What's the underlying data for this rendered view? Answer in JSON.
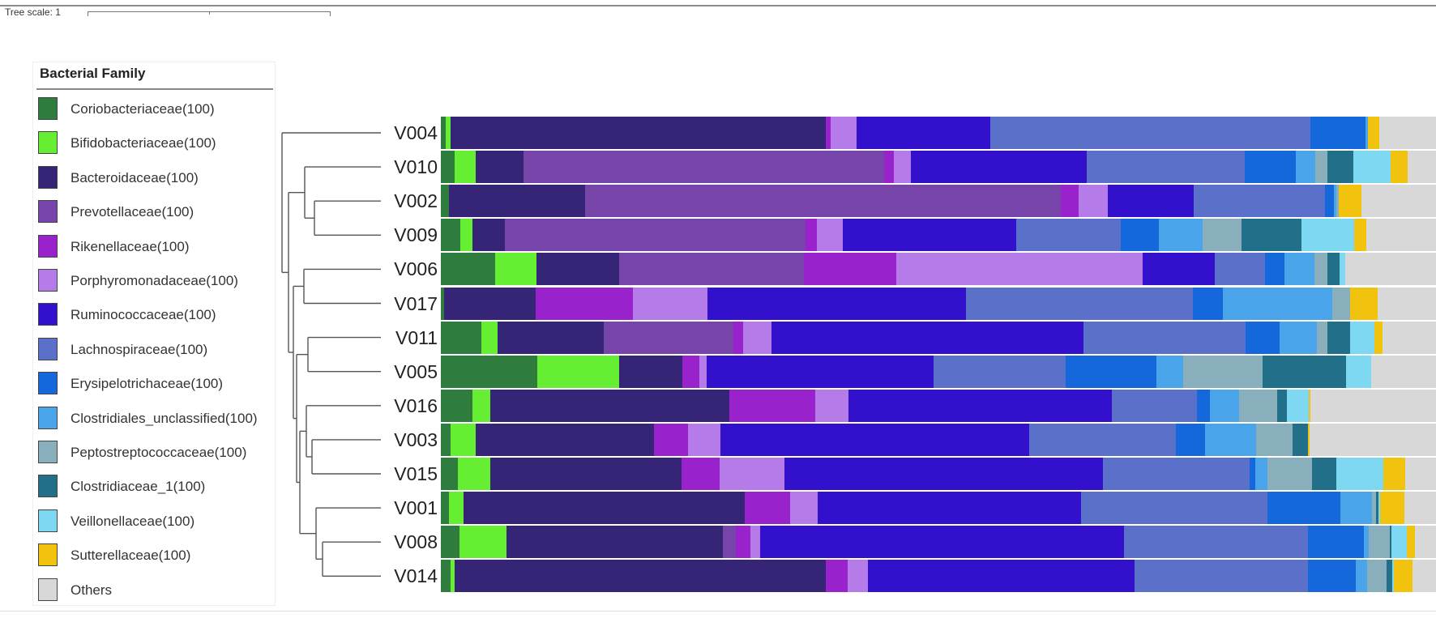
{
  "tree_scale": {
    "label": "Tree scale: 1"
  },
  "legend": {
    "title": "Bacterial Family",
    "items": [
      {
        "label": "Coriobacteriaceae(100)",
        "color": "#2e7d3e"
      },
      {
        "label": "Bifidobacteriaceae(100)",
        "color": "#66ee33"
      },
      {
        "label": "Bacteroidaceae(100)",
        "color": "#362577"
      },
      {
        "label": "Prevotellaceae(100)",
        "color": "#7744aa"
      },
      {
        "label": "Rikenellaceae(100)",
        "color": "#9922cc"
      },
      {
        "label": "Porphyromonadaceae(100)",
        "color": "#b57be8"
      },
      {
        "label": "Ruminococcaceae(100)",
        "color": "#3311cc"
      },
      {
        "label": "Lachnospiraceae(100)",
        "color": "#5b70c8"
      },
      {
        "label": "Erysipelotrichaceae(100)",
        "color": "#1468dc"
      },
      {
        "label": "Clostridiales_unclassified(100)",
        "color": "#4aa4ea"
      },
      {
        "label": "Peptostreptococcaceae(100)",
        "color": "#89afbd"
      },
      {
        "label": "Clostridiaceae_1(100)",
        "color": "#216f88"
      },
      {
        "label": "Veillonellaceae(100)",
        "color": "#7fd8f2"
      },
      {
        "label": "Sutterellaceae(100)",
        "color": "#f1c30e"
      },
      {
        "label": "Others",
        "color": "#d8d8d8"
      }
    ]
  },
  "chart_data": {
    "type": "bar",
    "orientation": "horizontal",
    "stacked": true,
    "xlim": [
      0,
      100
    ],
    "series_names": [
      "Coriobacteriaceae(100)",
      "Bifidobacteriaceae(100)",
      "Bacteroidaceae(100)",
      "Prevotellaceae(100)",
      "Rikenellaceae(100)",
      "Porphyromonadaceae(100)",
      "Ruminococcaceae(100)",
      "Lachnospiraceae(100)",
      "Erysipelotrichaceae(100)",
      "Clostridiales_unclassified(100)",
      "Peptostreptococcaceae(100)",
      "Clostridiaceae_1(100)",
      "Veillonellaceae(100)",
      "Sutterellaceae(100)",
      "Others"
    ],
    "samples": [
      {
        "name": "V004",
        "values": [
          0.5,
          0.5,
          37.9,
          0,
          0.5,
          2.6,
          13.5,
          32.3,
          5.6,
          0.2,
          0,
          0,
          0,
          1.2,
          5.7
        ]
      },
      {
        "name": "V010",
        "values": [
          1.4,
          2.1,
          4.9,
          36.5,
          1.0,
          1.7,
          17.8,
          16.0,
          5.2,
          2.0,
          1.2,
          2.6,
          3.8,
          1.7,
          2.9
        ]
      },
      {
        "name": "V002",
        "values": [
          0.8,
          0,
          13.8,
          48.3,
          1.8,
          3.0,
          8.7,
          13.3,
          0.9,
          0.3,
          0.2,
          0,
          0,
          2.3,
          7.6
        ]
      },
      {
        "name": "V009",
        "values": [
          2.0,
          1.2,
          3.3,
          30.4,
          1.2,
          2.6,
          17.6,
          10.6,
          3.8,
          4.5,
          3.9,
          6.1,
          5.3,
          1.2,
          7.1
        ]
      },
      {
        "name": "V006",
        "values": [
          5.4,
          4.2,
          8.3,
          18.5,
          9.2,
          24.7,
          7.2,
          5.1,
          1.9,
          3.0,
          1.3,
          1.2,
          0.6,
          0,
          9.1
        ]
      },
      {
        "name": "V017",
        "values": [
          0.3,
          0,
          9.2,
          0,
          9.8,
          7.5,
          26.0,
          22.8,
          3.0,
          11.0,
          1.8,
          0,
          0,
          2.7,
          5.9
        ]
      },
      {
        "name": "V011",
        "values": [
          4.1,
          1.6,
          10.7,
          13.0,
          1.0,
          2.8,
          31.4,
          16.3,
          3.4,
          3.7,
          1.1,
          2.3,
          2.4,
          0.8,
          5.4
        ]
      },
      {
        "name": "V005",
        "values": [
          9.7,
          8.2,
          6.4,
          0,
          1.7,
          0.7,
          22.8,
          13.3,
          9.1,
          2.7,
          8.0,
          8.4,
          2.5,
          0,
          6.5
        ]
      },
      {
        "name": "V016",
        "values": [
          3.2,
          1.8,
          24.0,
          0,
          8.6,
          3.4,
          26.4,
          8.6,
          1.3,
          2.9,
          3.8,
          1.0,
          2.2,
          0.2,
          12.6
        ]
      },
      {
        "name": "V003",
        "values": [
          1.0,
          2.5,
          17.9,
          0,
          3.4,
          3.3,
          31.0,
          14.8,
          2.9,
          5.1,
          3.7,
          1.5,
          0,
          0.2,
          12.7
        ]
      },
      {
        "name": "V015",
        "values": [
          1.7,
          3.3,
          19.2,
          0,
          3.8,
          6.5,
          32.0,
          14.8,
          0.5,
          1.3,
          4.4,
          2.5,
          4.7,
          2.2,
          3.1
        ]
      },
      {
        "name": "V001",
        "values": [
          0.8,
          1.5,
          28.2,
          0,
          4.6,
          2.8,
          26.4,
          18.8,
          7.3,
          3.2,
          0.4,
          0.2,
          0.2,
          2.4,
          3.2
        ]
      },
      {
        "name": "V008",
        "values": [
          1.9,
          4.8,
          21.9,
          1.3,
          1.5,
          1.0,
          36.9,
          18.7,
          5.7,
          0.5,
          2.1,
          0.2,
          1.5,
          0.9,
          2.1
        ]
      },
      {
        "name": "V014",
        "values": [
          1.0,
          0.4,
          37.3,
          0,
          2.2,
          2.0,
          26.8,
          17.4,
          4.8,
          1.2,
          1.9,
          0.6,
          0.2,
          1.8,
          2.4
        ]
      }
    ]
  }
}
